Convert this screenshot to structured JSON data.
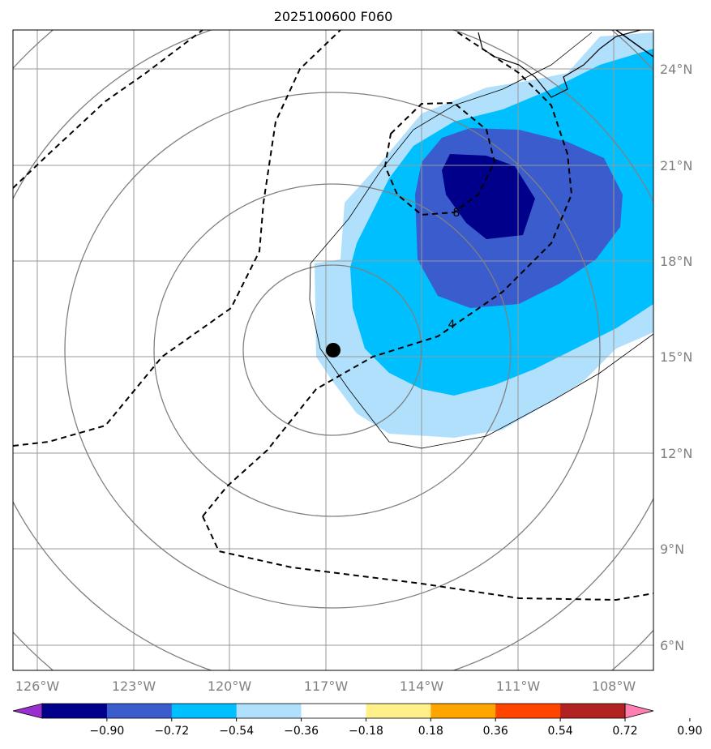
{
  "title": "2025100600 F060",
  "longitude_labels": [
    "126°W",
    "123°W",
    "120°W",
    "117°W",
    "114°W",
    "111°W",
    "108°W"
  ],
  "latitude_labels": [
    "24°N",
    "21°N",
    "18°N",
    "15°N",
    "12°N",
    "9°N",
    "6°N"
  ],
  "colorbar": {
    "ticks": [
      "−0.90",
      "−0.72",
      "−0.54",
      "−0.36",
      "−0.18",
      "0.18",
      "0.36",
      "0.54",
      "0.72",
      "0.90"
    ],
    "colors": [
      "#9a2fd0",
      "#00008b",
      "#3a5ccc",
      "#00bfff",
      "#b0e0fb",
      "#ffffff",
      "#fff08a",
      "#ffa500",
      "#ff4500",
      "#b22222",
      "#ff80b0"
    ]
  },
  "contour_labels": [
    "4",
    "8"
  ],
  "storm_center": {
    "lon": -116.8,
    "lat": 15.2
  }
}
